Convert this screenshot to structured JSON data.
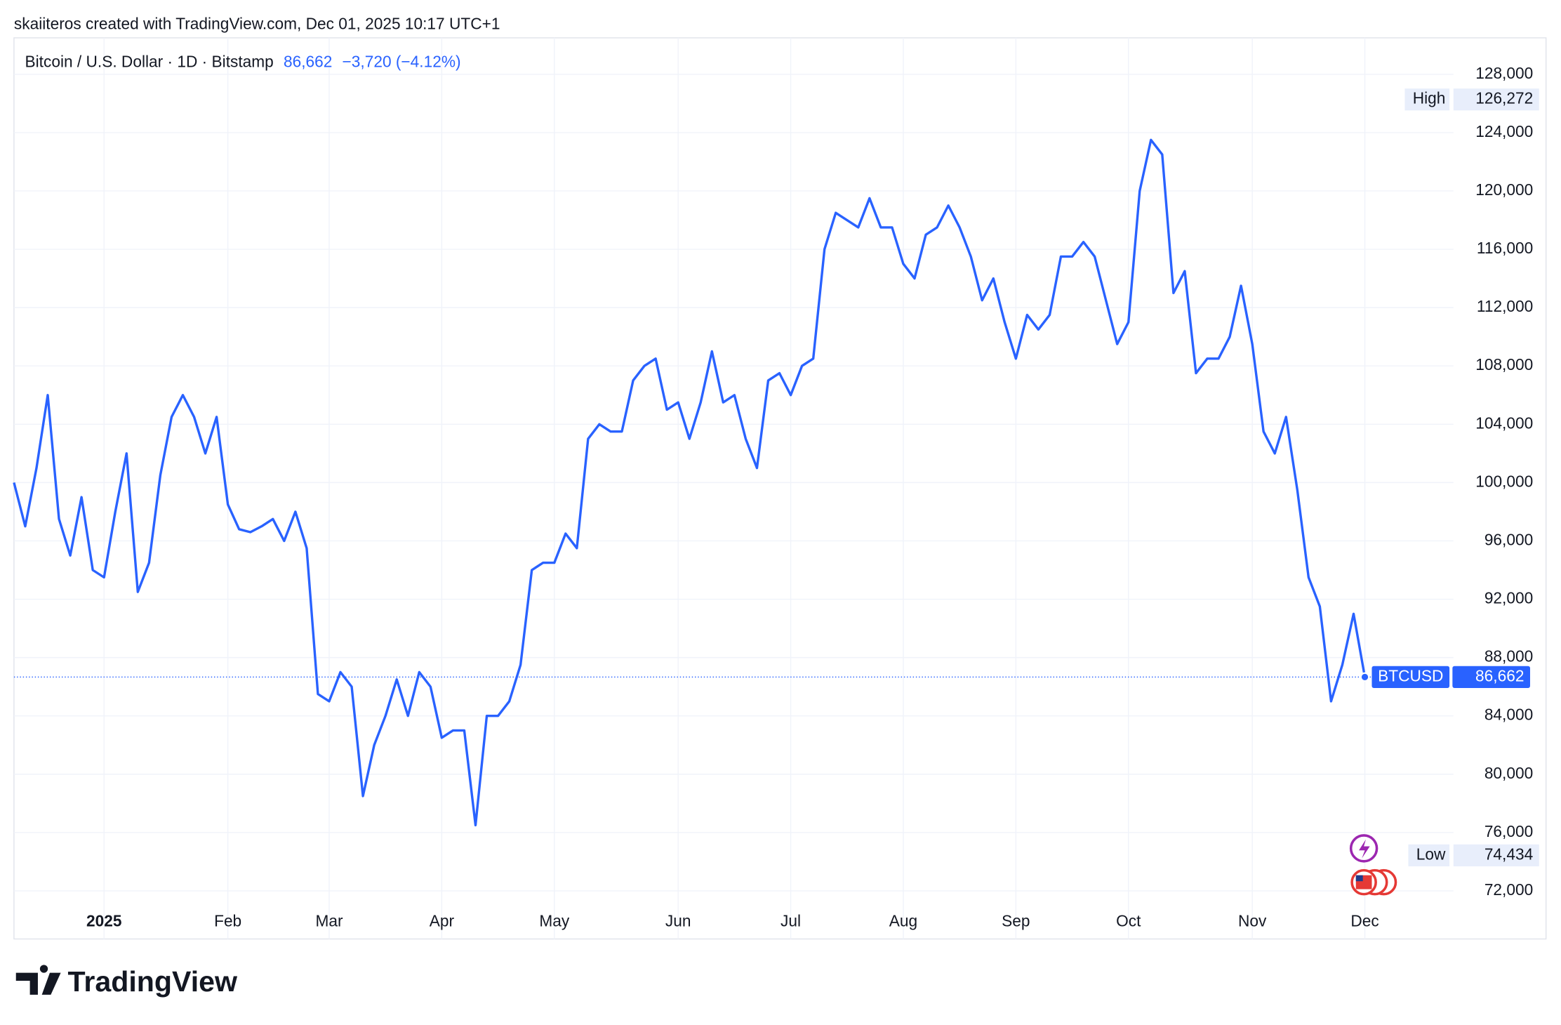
{
  "header": {
    "attribution": "skaiiteros created with TradingView.com, Dec 01, 2025 10:17 UTC+1"
  },
  "chart_data": {
    "type": "line",
    "title": "Bitcoin / U.S. Dollar · 1D · Bitstamp",
    "legend_price": "86,662",
    "legend_change": "−3,720 (−4.12%)",
    "categories": [
      null,
      null,
      null,
      null,
      null,
      null,
      null,
      null,
      "2025",
      null,
      null,
      null,
      null,
      null,
      null,
      null,
      null,
      null,
      null,
      "Feb",
      null,
      null,
      null,
      null,
      null,
      null,
      null,
      null,
      "Mar",
      null,
      null,
      null,
      null,
      null,
      null,
      null,
      null,
      null,
      "Apr",
      null,
      null,
      null,
      null,
      null,
      null,
      null,
      null,
      null,
      "May",
      null,
      null,
      null,
      null,
      null,
      null,
      null,
      null,
      null,
      null,
      "Jun",
      null,
      null,
      null,
      null,
      null,
      null,
      null,
      null,
      null,
      "Jul",
      null,
      null,
      null,
      null,
      null,
      null,
      null,
      null,
      null,
      "Aug",
      null,
      null,
      null,
      null,
      null,
      null,
      null,
      null,
      null,
      "Sep",
      null,
      null,
      null,
      null,
      null,
      null,
      null,
      null,
      null,
      "Oct",
      null,
      null,
      null,
      null,
      null,
      null,
      null,
      null,
      null,
      null,
      "Nov",
      null,
      null,
      null,
      null,
      null,
      null,
      null,
      null,
      null,
      "Dec"
    ],
    "series": [
      {
        "name": "BTCUSD",
        "color": "#2962ff",
        "values": [
          100000,
          97000,
          101000,
          106000,
          97500,
          95000,
          99000,
          94000,
          93500,
          98000,
          102000,
          92500,
          94500,
          100500,
          104500,
          106000,
          104500,
          102000,
          104500,
          98500,
          96800,
          96600,
          97000,
          97500,
          96000,
          98000,
          95500,
          85500,
          85000,
          87000,
          86000,
          78500,
          82000,
          84000,
          86500,
          84000,
          87000,
          86000,
          82500,
          83000,
          83000,
          76500,
          84000,
          84000,
          85000,
          87500,
          94000,
          94500,
          94500,
          96500,
          95500,
          103000,
          104000,
          103500,
          103500,
          107000,
          108000,
          108500,
          105000,
          105500,
          103000,
          105500,
          109000,
          105500,
          106000,
          103000,
          101000,
          107000,
          107500,
          106000,
          108000,
          108500,
          116000,
          118500,
          118000,
          117500,
          119500,
          117500,
          117500,
          115000,
          114000,
          117000,
          117500,
          119000,
          117500,
          115500,
          112500,
          114000,
          111000,
          108500,
          111500,
          110500,
          111500,
          115500,
          115500,
          116500,
          115500,
          112500,
          109500,
          111000,
          120000,
          123500,
          122500,
          113000,
          114500,
          107500,
          108500,
          108500,
          110000,
          113500,
          109500,
          103500,
          102000,
          104500,
          99500,
          93500,
          91500,
          85000,
          87500,
          91000,
          86662
        ]
      }
    ],
    "ylim": [
      68700,
      130500
    ],
    "yticks": [
      {
        "value": 72000,
        "label": "72,000"
      },
      {
        "value": 76000,
        "label": "76,000"
      },
      {
        "value": 80000,
        "label": "80,000"
      },
      {
        "value": 84000,
        "label": "84,000"
      },
      {
        "value": 88000,
        "label": "88,000"
      },
      {
        "value": 92000,
        "label": "92,000"
      },
      {
        "value": 96000,
        "label": "96,000"
      },
      {
        "value": 100000,
        "label": "100,000"
      },
      {
        "value": 104000,
        "label": "104,000"
      },
      {
        "value": 108000,
        "label": "108,000"
      },
      {
        "value": 112000,
        "label": "112,000"
      },
      {
        "value": 116000,
        "label": "116,000"
      },
      {
        "value": 120000,
        "label": "120,000"
      },
      {
        "value": 124000,
        "label": "124,000"
      },
      {
        "value": 128000,
        "label": "128,000"
      }
    ],
    "grid": true,
    "markers": [
      {
        "name": "High",
        "value": 126272,
        "value_label": "126,272"
      },
      {
        "name": "Low",
        "value": 74434,
        "value_label": "74,434"
      },
      {
        "name": "BTCUSD",
        "value": 86662,
        "value_label": "86,662"
      }
    ]
  },
  "footer": {
    "brand": "TradingView"
  }
}
